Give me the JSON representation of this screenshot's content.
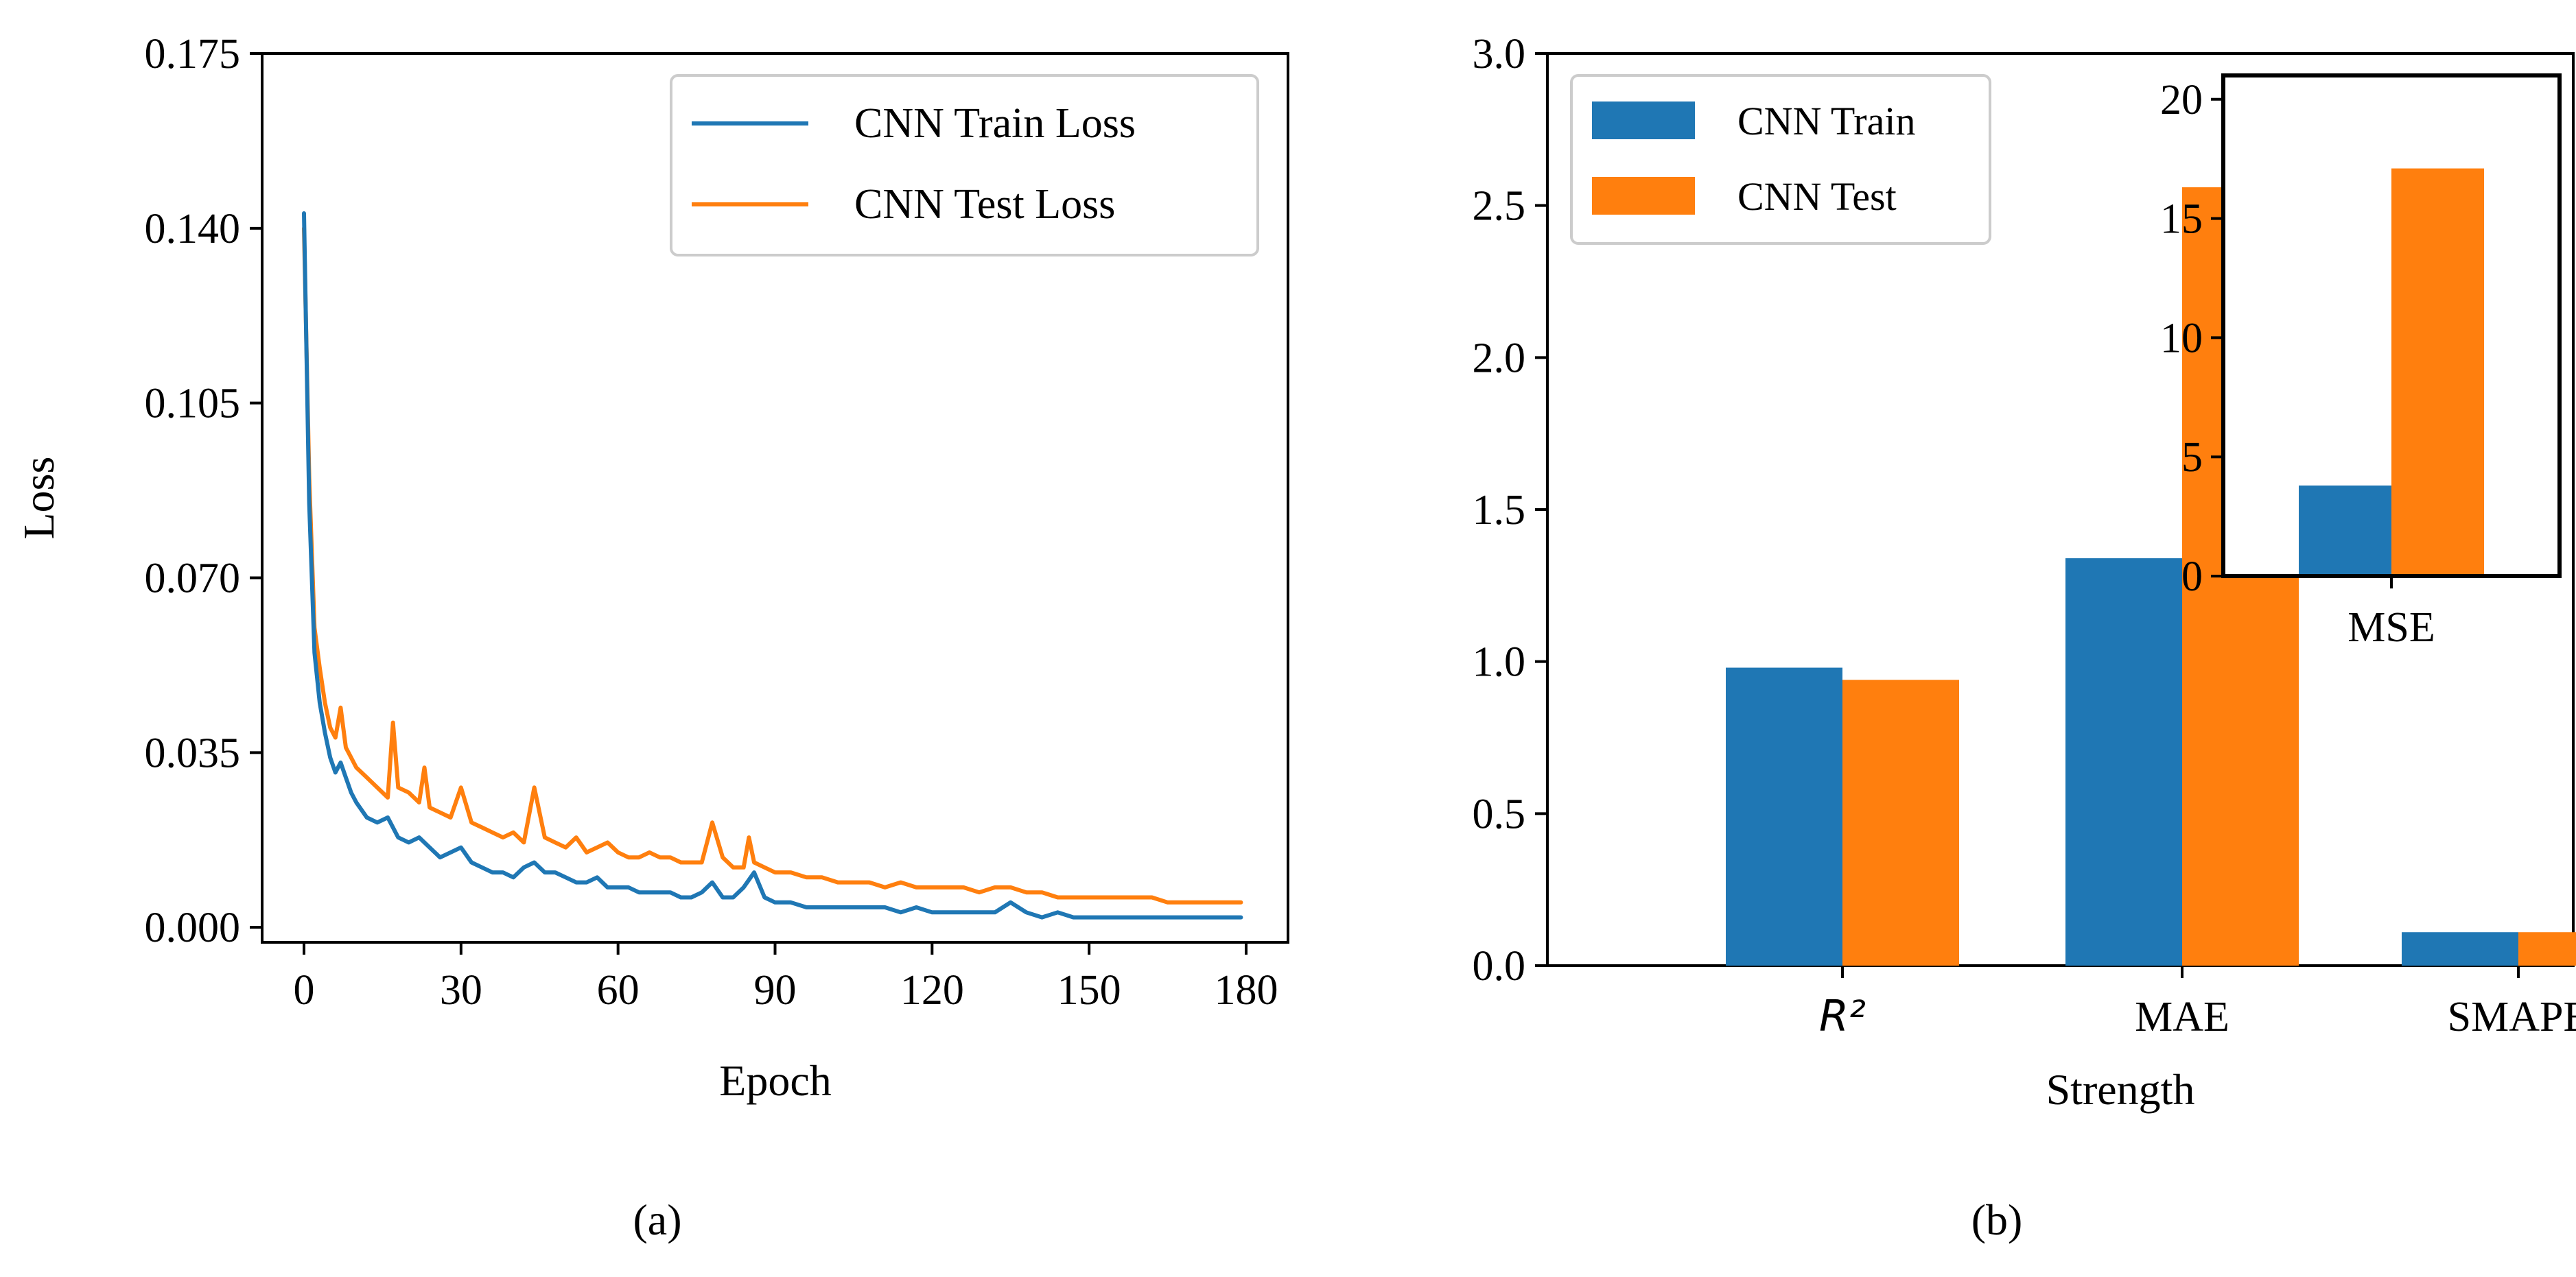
{
  "colors": {
    "train": "#1f77b4",
    "test": "#ff7f0e",
    "axis": "#000000"
  },
  "chart_data": [
    {
      "id": "a",
      "type": "line",
      "caption": "(a)",
      "title": "",
      "xlabel": "Epoch",
      "ylabel": "Loss",
      "xlim": [
        -8,
        188
      ],
      "ylim": [
        -0.003,
        0.175
      ],
      "xticks": [
        0,
        30,
        60,
        90,
        120,
        150,
        180
      ],
      "xtick_labels": [
        "0",
        "30",
        "60",
        "90",
        "120",
        "150",
        "180"
      ],
      "yticks": [
        0,
        0.035,
        0.07,
        0.105,
        0.14,
        0.175
      ],
      "ytick_labels": [
        "0.000",
        "0.035",
        "0.070",
        "0.105",
        "0.140",
        "0.175"
      ],
      "legend_position": "top-right",
      "series": [
        {
          "name": "CNN Train Loss",
          "color_key": "train",
          "x": [
            0,
            1,
            2,
            3,
            4,
            5,
            6,
            7,
            8,
            9,
            10,
            12,
            14,
            16,
            18,
            20,
            22,
            24,
            26,
            28,
            30,
            32,
            34,
            36,
            38,
            40,
            42,
            44,
            46,
            48,
            50,
            52,
            54,
            56,
            58,
            60,
            62,
            64,
            66,
            68,
            70,
            72,
            74,
            76,
            78,
            80,
            82,
            84,
            86,
            88,
            90,
            93,
            96,
            99,
            102,
            105,
            108,
            111,
            114,
            117,
            120,
            123,
            126,
            129,
            132,
            135,
            138,
            141,
            144,
            147,
            150,
            153,
            156,
            159,
            162,
            165,
            168,
            171,
            174,
            177,
            179
          ],
          "y": [
            0.143,
            0.085,
            0.055,
            0.045,
            0.039,
            0.034,
            0.031,
            0.033,
            0.03,
            0.027,
            0.025,
            0.022,
            0.021,
            0.022,
            0.018,
            0.017,
            0.018,
            0.016,
            0.014,
            0.015,
            0.016,
            0.013,
            0.012,
            0.011,
            0.011,
            0.01,
            0.012,
            0.013,
            0.011,
            0.011,
            0.01,
            0.009,
            0.009,
            0.01,
            0.008,
            0.008,
            0.008,
            0.007,
            0.007,
            0.007,
            0.007,
            0.006,
            0.006,
            0.007,
            0.009,
            0.006,
            0.006,
            0.008,
            0.011,
            0.006,
            0.005,
            0.005,
            0.004,
            0.004,
            0.004,
            0.004,
            0.004,
            0.004,
            0.003,
            0.004,
            0.003,
            0.003,
            0.003,
            0.003,
            0.003,
            0.005,
            0.003,
            0.002,
            0.003,
            0.002,
            0.002,
            0.002,
            0.002,
            0.002,
            0.002,
            0.002,
            0.002,
            0.002,
            0.002,
            0.002,
            0.002
          ]
        },
        {
          "name": "CNN Test Loss",
          "color_key": "test",
          "x": [
            0,
            1,
            2,
            3,
            4,
            5,
            6,
            7,
            8,
            9,
            10,
            12,
            14,
            16,
            17,
            18,
            20,
            22,
            23,
            24,
            26,
            28,
            30,
            32,
            34,
            36,
            38,
            40,
            42,
            44,
            46,
            48,
            50,
            52,
            54,
            56,
            58,
            60,
            62,
            64,
            66,
            68,
            70,
            72,
            74,
            76,
            78,
            80,
            82,
            84,
            85,
            86,
            88,
            90,
            93,
            96,
            99,
            102,
            105,
            108,
            111,
            114,
            117,
            120,
            123,
            126,
            129,
            132,
            135,
            138,
            141,
            144,
            147,
            150,
            153,
            156,
            159,
            162,
            165,
            168,
            171,
            174,
            177,
            179
          ],
          "y": [
            0.14,
            0.09,
            0.06,
            0.052,
            0.045,
            0.04,
            0.038,
            0.044,
            0.036,
            0.034,
            0.032,
            0.03,
            0.028,
            0.026,
            0.041,
            0.028,
            0.027,
            0.025,
            0.032,
            0.024,
            0.023,
            0.022,
            0.028,
            0.021,
            0.02,
            0.019,
            0.018,
            0.019,
            0.017,
            0.028,
            0.018,
            0.017,
            0.016,
            0.018,
            0.015,
            0.016,
            0.017,
            0.015,
            0.014,
            0.014,
            0.015,
            0.014,
            0.014,
            0.013,
            0.013,
            0.013,
            0.021,
            0.014,
            0.012,
            0.012,
            0.018,
            0.013,
            0.012,
            0.011,
            0.011,
            0.01,
            0.01,
            0.009,
            0.009,
            0.009,
            0.008,
            0.009,
            0.008,
            0.008,
            0.008,
            0.008,
            0.007,
            0.008,
            0.008,
            0.007,
            0.007,
            0.006,
            0.006,
            0.006,
            0.006,
            0.006,
            0.006,
            0.006,
            0.005,
            0.005,
            0.005,
            0.005,
            0.005,
            0.005
          ]
        }
      ]
    },
    {
      "id": "b",
      "type": "bar",
      "caption": "(b)",
      "title": "",
      "xlabel": "Strength",
      "ylabel": "",
      "categories": [
        "R²",
        "MAE",
        "SMAPE"
      ],
      "ylim": [
        0,
        3.0
      ],
      "yticks": [
        0.0,
        0.5,
        1.0,
        1.5,
        2.0,
        2.5,
        3.0
      ],
      "ytick_labels": [
        "0.0",
        "0.5",
        "1.0",
        "1.5",
        "2.0",
        "2.5",
        "3.0"
      ],
      "legend_position": "top-left",
      "series": [
        {
          "name": "CNN Train",
          "color_key": "train",
          "values": [
            0.98,
            1.34,
            0.11
          ]
        },
        {
          "name": "CNN Test",
          "color_key": "test",
          "values": [
            0.94,
            2.56,
            0.11
          ]
        }
      ],
      "inset": {
        "type": "bar",
        "category": "MSE",
        "ylim": [
          0,
          21
        ],
        "yticks": [
          0,
          5,
          10,
          15,
          20
        ],
        "ytick_labels": [
          "0",
          "5",
          "10",
          "15",
          "20"
        ],
        "series": [
          {
            "name": "CNN Train",
            "color_key": "train",
            "value": 3.8
          },
          {
            "name": "CNN Test",
            "color_key": "test",
            "value": 17.1
          }
        ]
      }
    }
  ]
}
